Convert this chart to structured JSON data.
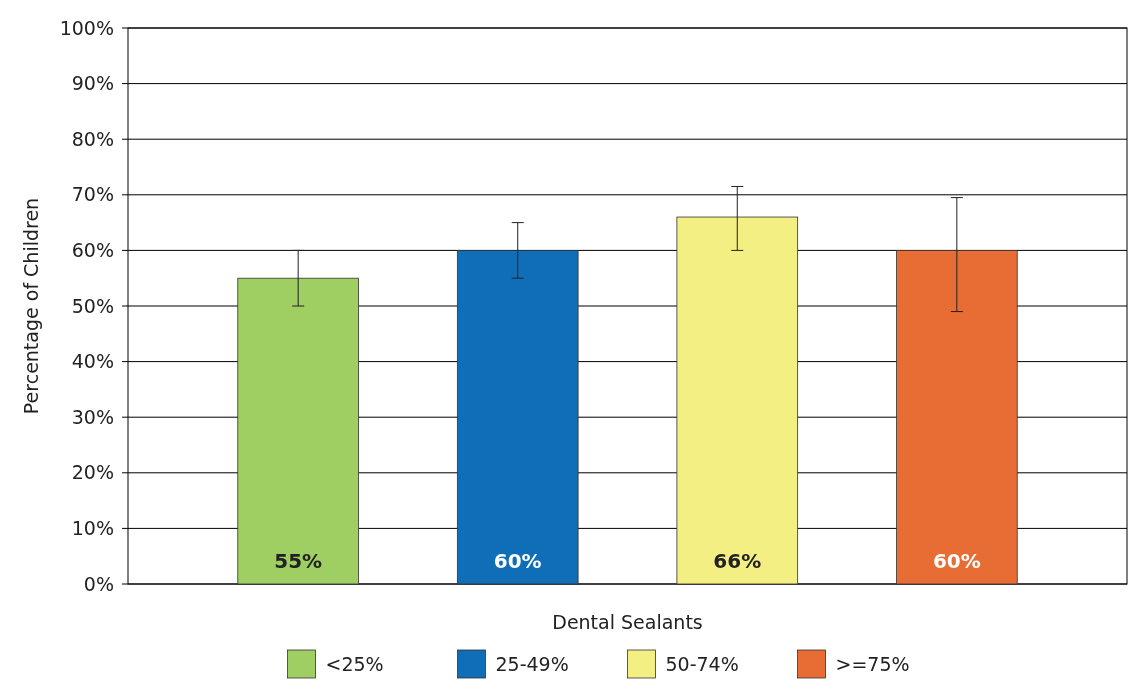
{
  "chart_data": {
    "type": "bar",
    "ylabel": "Percentage of Children",
    "categories": [
      "Dental Sealants"
    ],
    "series": [
      {
        "name": "<25%",
        "color": "#9fce63",
        "values": [
          55
        ],
        "value_labels": [
          "55%"
        ],
        "errors": [
          [
            50,
            60
          ]
        ]
      },
      {
        "name": "25-49%",
        "color": "#106db7",
        "values": [
          60
        ],
        "value_labels": [
          "60%"
        ],
        "errors": [
          [
            55,
            65
          ]
        ]
      },
      {
        "name": "50-74%",
        "color": "#f4ef82",
        "values": [
          66
        ],
        "value_labels": [
          "66%"
        ],
        "errors": [
          [
            60,
            71.5
          ]
        ]
      },
      {
        "name": ">=75%",
        "color": "#e86d34",
        "values": [
          60
        ],
        "value_labels": [
          "60%"
        ],
        "errors": [
          [
            49,
            69.5
          ]
        ]
      }
    ],
    "ylim": [
      0,
      100
    ],
    "yticks": [
      {
        "value": 0,
        "label": "0%"
      },
      {
        "value": 10,
        "label": "10%"
      },
      {
        "value": 20,
        "label": "20%"
      },
      {
        "value": 30,
        "label": "30%"
      },
      {
        "value": 40,
        "label": "40%"
      },
      {
        "value": 50,
        "label": "50%"
      },
      {
        "value": 60,
        "label": "60%"
      },
      {
        "value": 70,
        "label": "70%"
      },
      {
        "value": 80,
        "label": "80%"
      },
      {
        "value": 90,
        "label": "90%"
      },
      {
        "value": 100,
        "label": "100%"
      }
    ],
    "grid": "y",
    "legend": "bottom"
  }
}
